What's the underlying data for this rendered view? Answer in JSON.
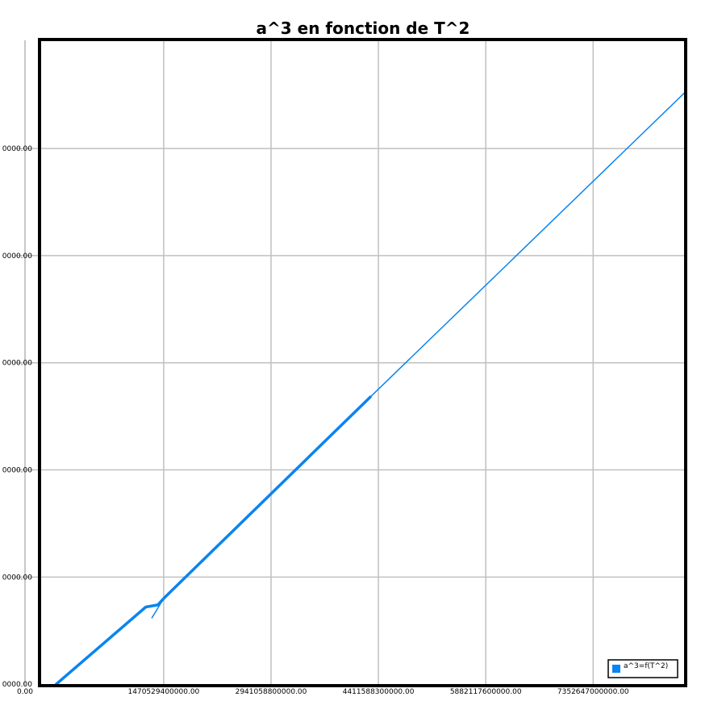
{
  "chart_data": {
    "type": "line",
    "title": "a^3 en fonction de T^2",
    "xlabel": "",
    "ylabel": "",
    "x_ticks": [
      "0.00",
      "1470529400000.00",
      "2941058800000.00",
      "4411588300000.00",
      "5882117600000.00",
      "7352647000000.00"
    ],
    "y_ticks": [
      "0000.00",
      "0000.00",
      "0000.00",
      "0000.00",
      "0000.00",
      "0000.00"
    ],
    "x_tick_values": [
      0,
      1470529400000,
      2941058800000,
      4411588300000,
      5882117600000,
      7352647000000
    ],
    "y_tick_values": [
      0,
      1,
      2,
      3,
      4,
      5
    ],
    "xlim": [
      -230000000000,
      8620000000000
    ],
    "ylim": [
      -0.014,
      6.017
    ],
    "grid": true,
    "legend": {
      "position": "bottom-right",
      "entries": [
        "a^3=f(T^2)"
      ]
    },
    "series": [
      {
        "name": "a^3=f(T^2)",
        "color": "#0a84f0",
        "segments": [
          {
            "x": [
              0,
              1225000000000,
              1390000000000,
              1485000000000,
              4300000000000
            ],
            "y": [
              0,
              0.72,
              0.74,
              0.81,
              2.68
            ],
            "width": 3.5
          },
          {
            "x": [
              1470529400000,
              1310000000000
            ],
            "y": [
              0.8,
              0.62
            ],
            "width": 1.5
          },
          {
            "x": [
              4300000000000,
              8620000000000
            ],
            "y": [
              2.68,
              5.53
            ],
            "width": 1.5
          }
        ]
      }
    ]
  }
}
